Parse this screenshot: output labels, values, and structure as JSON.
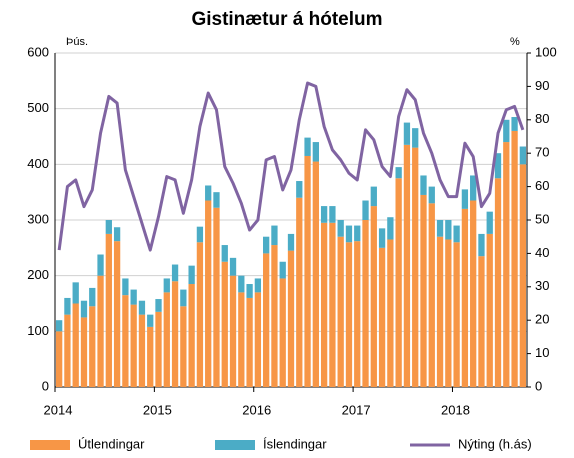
{
  "chart_data": {
    "type": "bar",
    "stacked": true,
    "title": "Gistinætur á hótelum",
    "y_label": "Þús.",
    "y2_label": "%",
    "categories": [
      "2014",
      null,
      null,
      null,
      null,
      null,
      null,
      null,
      null,
      null,
      null,
      null,
      "2015",
      null,
      null,
      null,
      null,
      null,
      null,
      null,
      null,
      null,
      null,
      null,
      "2016",
      null,
      null,
      null,
      null,
      null,
      null,
      null,
      null,
      null,
      null,
      null,
      "2017",
      null,
      null,
      null,
      null,
      null,
      null,
      null,
      null,
      null,
      null,
      null,
      "2018",
      null,
      null,
      null,
      null,
      null,
      null,
      null,
      null
    ],
    "series": [
      {
        "name": "Útlendingar",
        "color": "#f79646",
        "values": [
          100,
          130,
          150,
          125,
          145,
          200,
          275,
          262,
          165,
          148,
          130,
          108,
          135,
          170,
          190,
          145,
          185,
          260,
          335,
          322,
          225,
          200,
          170,
          160,
          170,
          240,
          255,
          195,
          245,
          340,
          415,
          405,
          295,
          295,
          270,
          260,
          262,
          300,
          325,
          250,
          265,
          375,
          435,
          430,
          345,
          330,
          270,
          265,
          260,
          320,
          335,
          235,
          275,
          375,
          440,
          460,
          400
        ]
      },
      {
        "name": "Íslendingar",
        "color": "#4bacc6",
        "values": [
          20,
          30,
          38,
          30,
          33,
          38,
          25,
          25,
          30,
          27,
          25,
          22,
          23,
          25,
          30,
          30,
          33,
          28,
          27,
          28,
          30,
          32,
          30,
          25,
          25,
          30,
          35,
          30,
          30,
          30,
          33,
          35,
          30,
          30,
          30,
          30,
          28,
          35,
          35,
          35,
          40,
          20,
          40,
          35,
          35,
          30,
          30,
          35,
          30,
          35,
          45,
          40,
          40,
          45,
          40,
          25,
          32
        ]
      },
      {
        "name": "Nýting (h.ás)",
        "color": "#8064a2",
        "axis": "y2",
        "type": "line",
        "values": [
          41,
          60,
          62,
          54,
          59,
          76,
          87,
          85,
          65,
          57,
          49,
          41,
          51,
          63,
          62,
          52,
          62,
          78,
          88,
          83,
          66,
          61,
          55,
          47,
          50,
          68,
          69,
          59,
          65,
          80,
          91,
          90,
          78,
          71,
          68,
          64,
          62,
          77,
          74,
          66,
          63,
          81,
          89,
          86,
          76,
          70,
          62,
          57,
          57,
          73,
          69,
          54,
          58,
          76,
          83,
          84,
          77
        ]
      }
    ],
    "ylim": [
      0,
      600
    ],
    "yticks": [
      0,
      100,
      200,
      300,
      400,
      500,
      600
    ],
    "y2lim": [
      0,
      100
    ],
    "y2ticks": [
      0,
      10,
      20,
      30,
      40,
      50,
      60,
      70,
      80,
      90,
      100
    ],
    "grid": true,
    "legend": "bottom"
  }
}
